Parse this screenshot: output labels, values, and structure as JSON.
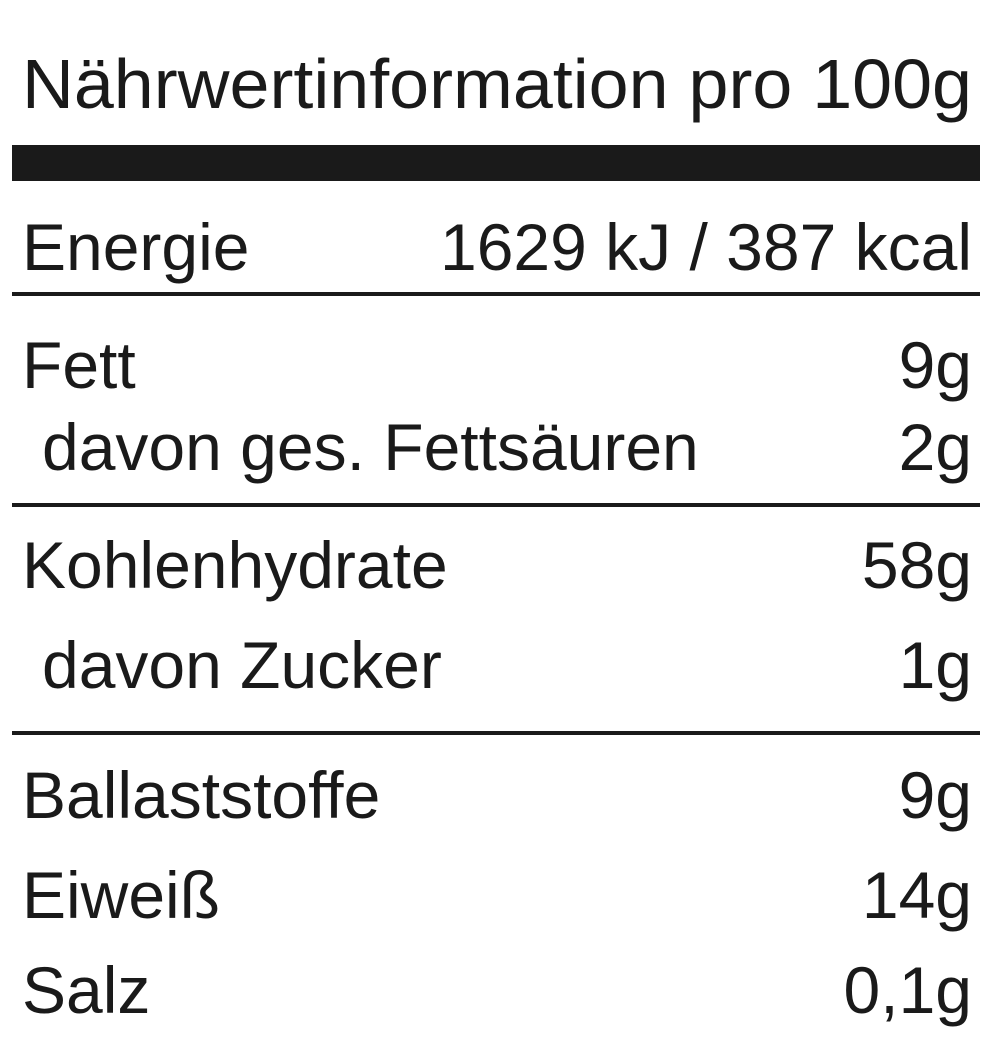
{
  "title": "Nährwertinformation pro 100g",
  "sections": [
    {
      "rows": [
        {
          "label": "Energie",
          "value": "1629 kJ / 387 kcal"
        }
      ]
    },
    {
      "rows": [
        {
          "label": "Fett",
          "value": "9g"
        },
        {
          "label": "davon ges. Fettsäuren",
          "value": "2g"
        }
      ]
    },
    {
      "rows": [
        {
          "label": "Kohlenhydrate",
          "value": "58g"
        },
        {
          "label": "davon Zucker",
          "value": "1g"
        }
      ]
    },
    {
      "rows": [
        {
          "label": "Ballaststoffe",
          "value": "9g"
        },
        {
          "label": "Eiweiß",
          "value": "14g"
        },
        {
          "label": "Salz",
          "value": "0,1g"
        }
      ]
    }
  ]
}
